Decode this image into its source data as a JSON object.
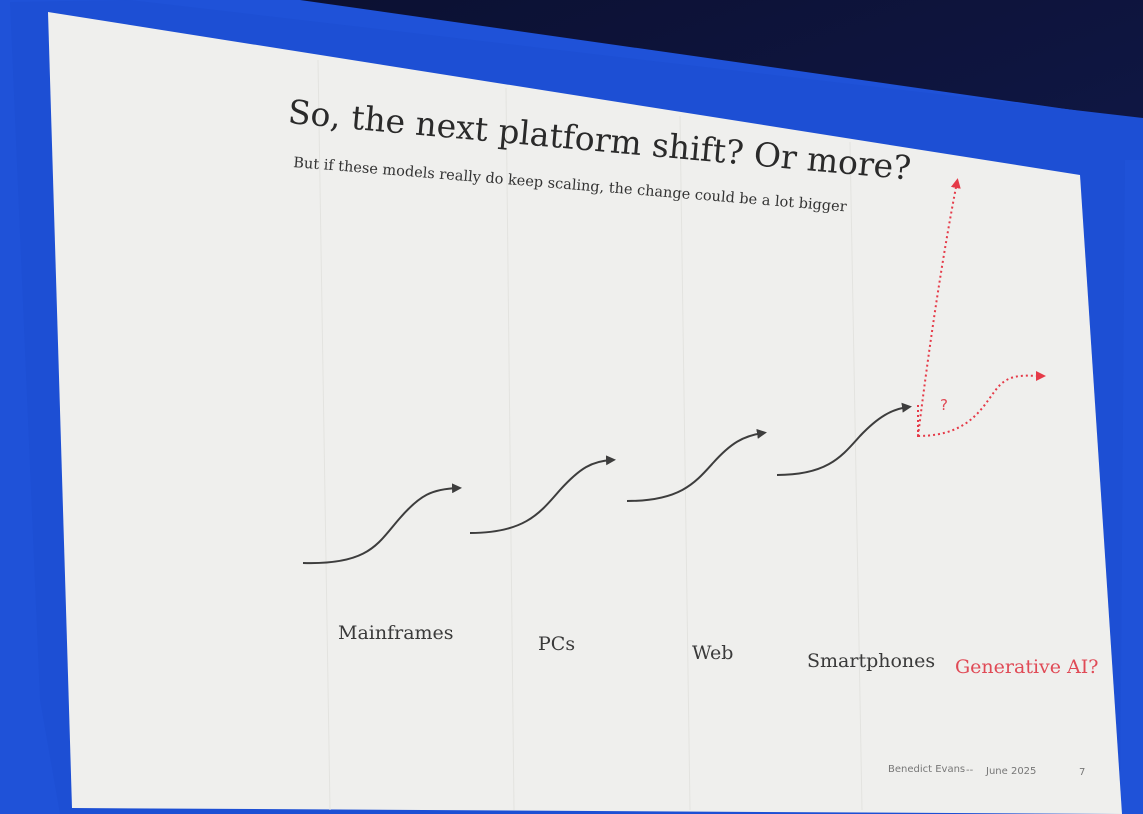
{
  "slide": {
    "title": "So, the next platform shift? Or more?",
    "subtitle": "But if these models really do keep scaling, the change could be a lot bigger",
    "eras": [
      {
        "label": "Mainframes"
      },
      {
        "label": "PCs"
      },
      {
        "label": "Web"
      },
      {
        "label": "Smartphones"
      },
      {
        "label": "Generative AI?"
      }
    ],
    "unknown_marker": "?",
    "footer": {
      "author": "Benedict Evans",
      "separator": "--",
      "date": "June 2025",
      "page_number": "7"
    }
  },
  "colors": {
    "slide_background": "#efefed",
    "text": "#2a2a2a",
    "accent_red": "#e04a56",
    "arrow_gray": "#3d3d3d",
    "stage_blue": "#1f52d8"
  },
  "icons": [
    "s-curve-arrow-icon",
    "dotted-arrow-icon"
  ]
}
